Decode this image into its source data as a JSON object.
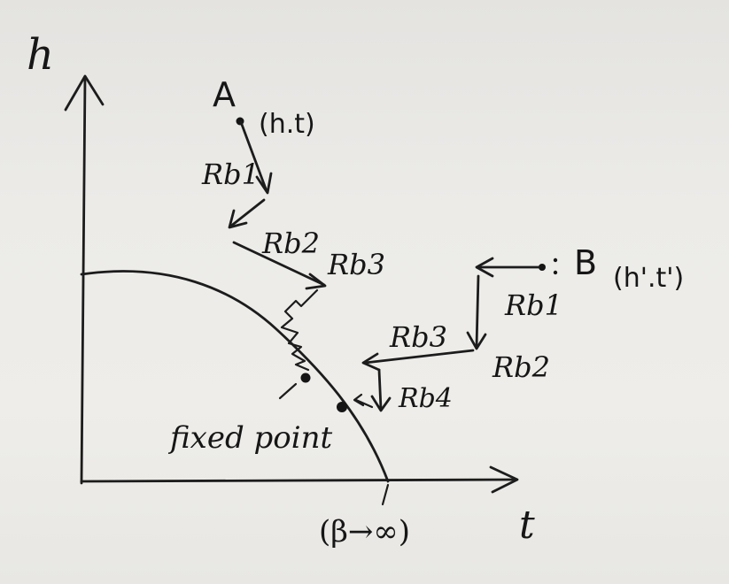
{
  "axes": {
    "y_label": "h",
    "x_label": "t"
  },
  "points": {
    "a_name": "A",
    "a_coords": "(h.t)",
    "b_name": "B",
    "b_coords": "(h'.t')"
  },
  "path_a_labels": {
    "step1": "Rb1",
    "step2": "Rb2",
    "step3": "Rb3"
  },
  "path_b_labels": {
    "step1": "Rb1",
    "step2": "Rb2",
    "step3": "Rb3",
    "step4": "Rb4"
  },
  "annotations": {
    "fixed_point": "fixed point",
    "limit": "(β→∞)"
  },
  "colors": {
    "ink": "#1c1c1c",
    "paper": "#eceae6"
  }
}
